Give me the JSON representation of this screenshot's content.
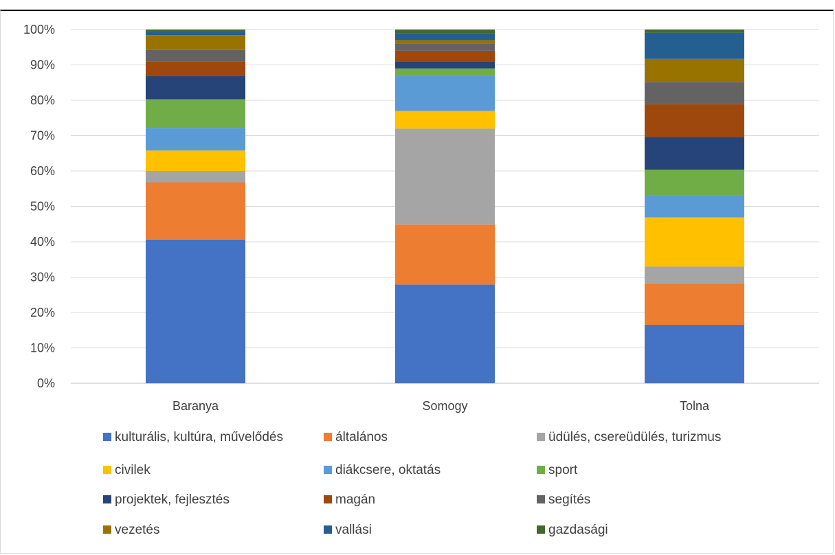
{
  "chart_data": {
    "type": "bar",
    "stacked": true,
    "percent": true,
    "title": "",
    "categories": [
      "Baranya",
      "Somogy",
      "Tolna"
    ],
    "ylim": [
      0,
      100
    ],
    "yticks": [
      "0%",
      "10%",
      "20%",
      "30%",
      "40%",
      "50%",
      "60%",
      "70%",
      "80%",
      "90%",
      "100%"
    ],
    "grid": true,
    "legend_position": "bottom",
    "series": [
      {
        "name": "kulturális, kultúra, művelődés",
        "color": "#4472C4",
        "values": [
          40.6,
          27.9,
          16.5
        ]
      },
      {
        "name": "általános",
        "color": "#ED7D31",
        "values": [
          16.2,
          17.0,
          11.8
        ]
      },
      {
        "name": "üdülés, csereüdülés, turizmus",
        "color": "#A5A5A5",
        "values": [
          3.2,
          27.1,
          4.7
        ]
      },
      {
        "name": "civilek",
        "color": "#FFC000",
        "values": [
          5.8,
          5.0,
          13.9
        ]
      },
      {
        "name": "diákcsere, oktatás",
        "color": "#5B9BD5",
        "values": [
          6.4,
          10.0,
          6.2
        ]
      },
      {
        "name": "sport",
        "color": "#70AD47",
        "values": [
          8.1,
          2.0,
          7.3
        ]
      },
      {
        "name": "projektek, fejlesztés",
        "color": "#264478",
        "values": [
          6.5,
          2.0,
          9.2
        ]
      },
      {
        "name": "magán",
        "color": "#9E480E",
        "values": [
          4.2,
          3.0,
          9.3
        ]
      },
      {
        "name": "segítés",
        "color": "#636363",
        "values": [
          3.2,
          2.0,
          6.3
        ]
      },
      {
        "name": "vezetés",
        "color": "#997300",
        "values": [
          4.2,
          1.0,
          6.5
        ]
      },
      {
        "name": "vallási",
        "color": "#255E91",
        "values": [
          1.0,
          2.0,
          7.4
        ]
      },
      {
        "name": "gazdasági",
        "color": "#43682B",
        "values": [
          0.6,
          1.0,
          0.9
        ]
      }
    ]
  }
}
